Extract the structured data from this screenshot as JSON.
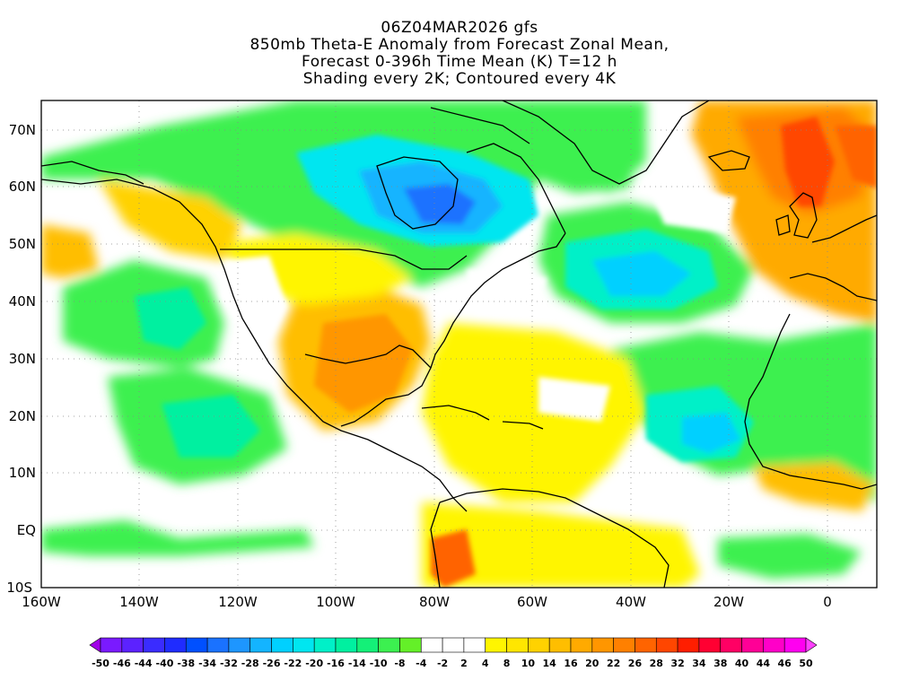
{
  "title": {
    "line1": "06Z04MAR2026 gfs",
    "line2": "850mb Theta-E Anomaly from Forecast Zonal Mean,",
    "line3": "Forecast 0-396h Time Mean (K) T=12 h",
    "line4": "Shading every 2K; Contoured every 4K"
  },
  "map": {
    "projection": "cylindrical equidistant",
    "lon_range": [
      -160,
      10
    ],
    "lat_range": [
      -10,
      75
    ],
    "grid": "dotted",
    "lat_ticks": [
      "70N",
      "60N",
      "50N",
      "40N",
      "30N",
      "20N",
      "10N",
      "EQ",
      "10S"
    ],
    "lat_tick_values": [
      70,
      60,
      50,
      40,
      30,
      20,
      10,
      0,
      -10
    ],
    "lon_ticks": [
      "160W",
      "140W",
      "120W",
      "100W",
      "80W",
      "60W",
      "40W",
      "20W",
      "0"
    ],
    "lon_tick_values": [
      -160,
      -140,
      -120,
      -100,
      -80,
      -60,
      -40,
      -20,
      0
    ]
  },
  "colorbar": {
    "labels": [
      "-50",
      "-46",
      "-44",
      "-40",
      "-38",
      "-34",
      "-32",
      "-28",
      "-26",
      "-22",
      "-20",
      "-16",
      "-14",
      "-10",
      "-8",
      "-4",
      "-2",
      "2",
      "4",
      "8",
      "10",
      "14",
      "16",
      "20",
      "22",
      "26",
      "28",
      "32",
      "34",
      "38",
      "40",
      "44",
      "46",
      "50"
    ],
    "colors": [
      "#a000e8",
      "#7a1aff",
      "#5c22ff",
      "#3a2cff",
      "#1f2cff",
      "#0050ff",
      "#1a72ff",
      "#1e96ff",
      "#14b4ff",
      "#00d0ff",
      "#00e6f0",
      "#00f0c8",
      "#00f0a0",
      "#14f078",
      "#3cf050",
      "#64f028",
      "#ffffff",
      "#ffffff",
      "#ffffff",
      "#fff500",
      "#ffe600",
      "#ffd200",
      "#ffbe00",
      "#ffaa00",
      "#ff9600",
      "#ff8000",
      "#ff6400",
      "#ff4600",
      "#ff1e00",
      "#ff0032",
      "#ff0064",
      "#ff0096",
      "#ff00c8",
      "#ff00f0",
      "#ff40ff"
    ]
  }
}
